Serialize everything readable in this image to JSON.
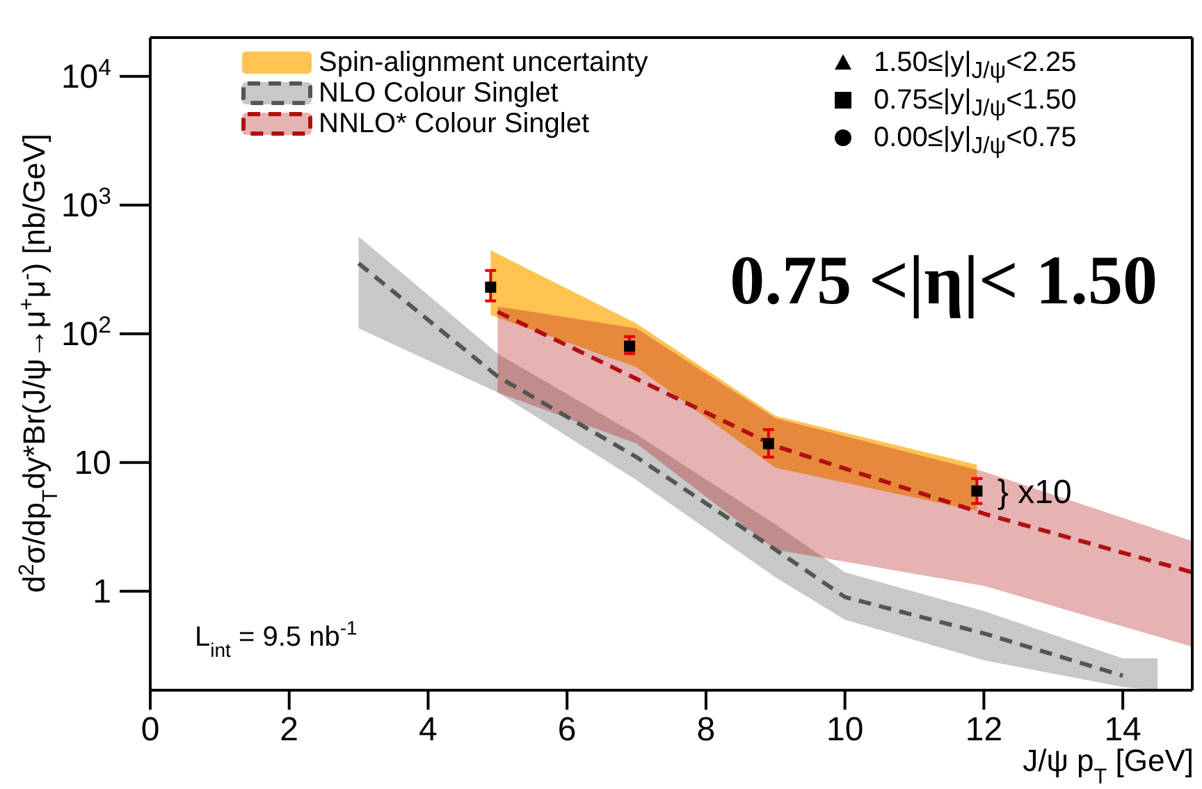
{
  "chart_data": {
    "type": "line",
    "xlabel": "J/ψ p$_{T}$ [GeV]",
    "ylabel": "d$^{2}$σ/dp$_{T}$dy*Br(J/ψ→μ$^{+}$μ$^{-}$) [nb/GeV]",
    "annotations": [
      "0.75 <|η|< 1.50",
      "L$_{int}$ = 9.5 nb$^{-1}$",
      {
        "text": "} x10",
        "x": 11.9,
        "y": 6
      }
    ],
    "xlim": [
      0,
      15
    ],
    "xticks": [
      0,
      2,
      4,
      6,
      8,
      10,
      12,
      14
    ],
    "ylim": [
      0.17,
      20000
    ],
    "yticks": [
      1,
      10,
      {
        "value": 100,
        "label": "10$^{2}$"
      },
      {
        "value": 1000,
        "label": "10$^{3}$"
      },
      {
        "value": 10000,
        "label": "10$^{4}$"
      }
    ],
    "log": "y",
    "legend": "top",
    "line_style": "dashed",
    "series": [
      {
        "name": "Spin-alignment uncertainty",
        "type": "area",
        "color": "#ffb833",
        "x": [
          4.9,
          7,
          9,
          11.9
        ],
        "values": [
          null,
          null,
          null,
          null
        ],
        "lower": [
          140,
          55,
          9.1,
          4.2
        ],
        "upper": [
          445,
          120,
          23,
          9.6
        ]
      },
      {
        "name": "NLO Colour Singlet",
        "color": "#555555",
        "x": [
          3,
          5,
          7,
          9,
          10,
          12,
          14,
          14.5
        ],
        "values": [
          352,
          46.6,
          11,
          2.1,
          0.9,
          0.47,
          0.22,
          null
        ],
        "lower": [
          110,
          35,
          7.3,
          1.28,
          0.6,
          0.29,
          0.18,
          0.17
        ],
        "upper": [
          569,
          70,
          16.5,
          3.3,
          1.4,
          0.7,
          0.3,
          0.3
        ]
      },
      {
        "name": "NNLO* Colour Singlet",
        "color": "#b01010",
        "x": [
          5,
          7,
          9,
          12,
          15
        ],
        "values": [
          148,
          44.6,
          13.4,
          4,
          1.4
        ],
        "lower": [
          35,
          14,
          2.1,
          1.1,
          0.37
        ],
        "upper": [
          163,
          110,
          22,
          8.5,
          2.45
        ]
      },
      {
        "name": "1.50≤|y|$_{J/ψ}$<2.25",
        "type": "scatter",
        "marker": "triangle",
        "color": "#000000"
      },
      {
        "name": "0.75≤|y|$_{J/ψ}$<1.50",
        "type": "scatter",
        "marker": "square",
        "color": "#000000",
        "x": [
          4.9,
          6.9,
          8.9,
          11.9
        ],
        "values": [
          230,
          80,
          14,
          6
        ],
        "errors": [
          [
            180,
            310
          ],
          [
            70,
            95
          ],
          [
            11,
            18
          ],
          [
            4.8,
            7.5
          ]
        ]
      },
      {
        "name": "0.00≤|y|$_{J/ψ}$<0.75",
        "type": "scatter",
        "marker": "circle",
        "color": "#000000"
      }
    ]
  }
}
